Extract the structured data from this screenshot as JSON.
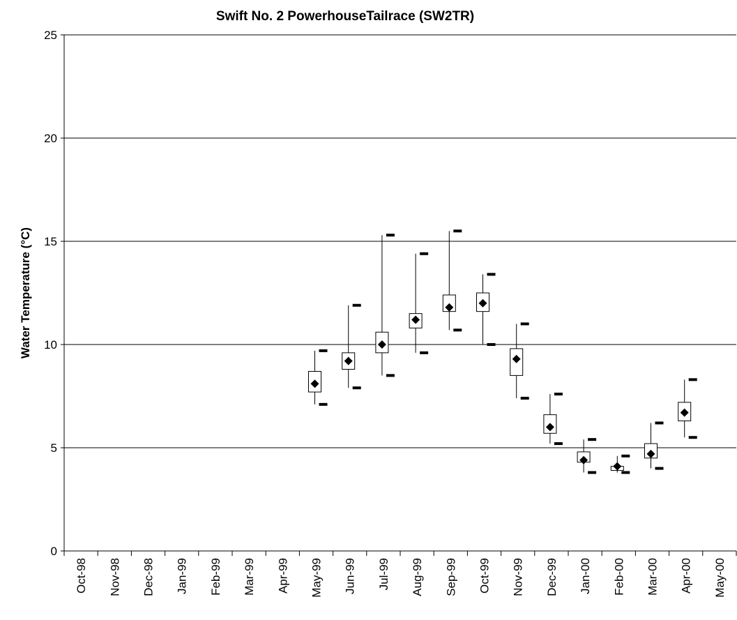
{
  "chart_data": {
    "type": "box",
    "title": "Swift No. 2 PowerhouseTailrace (SW2TR)",
    "y_label": "Water Temperature (°C)",
    "categories": [
      "Oct-98",
      "Nov-98",
      "Dec-98",
      "Jan-99",
      "Feb-99",
      "Mar-99",
      "Apr-99",
      "May-99",
      "Jun-99",
      "Jul-99",
      "Aug-99",
      "Sep-99",
      "Oct-99",
      "Nov-99",
      "Dec-99",
      "Jan-00",
      "Feb-00",
      "Mar-00",
      "Apr-00",
      "May-00"
    ],
    "min": [
      null,
      null,
      null,
      null,
      null,
      null,
      null,
      7.1,
      7.9,
      8.5,
      9.6,
      10.7,
      10.0,
      7.4,
      5.2,
      3.8,
      3.8,
      4.0,
      5.5,
      null
    ],
    "q1": [
      null,
      null,
      null,
      null,
      null,
      null,
      null,
      7.7,
      8.8,
      9.6,
      10.8,
      11.6,
      11.6,
      8.5,
      5.7,
      4.3,
      3.9,
      4.5,
      6.3,
      null
    ],
    "mean": [
      null,
      null,
      null,
      null,
      null,
      null,
      null,
      8.1,
      9.2,
      10.0,
      11.2,
      11.8,
      12.0,
      9.3,
      6.0,
      4.4,
      4.1,
      4.7,
      6.7,
      null
    ],
    "q3": [
      null,
      null,
      null,
      null,
      null,
      null,
      null,
      8.7,
      9.6,
      10.6,
      11.5,
      12.4,
      12.5,
      9.8,
      6.6,
      4.8,
      4.1,
      5.2,
      7.2,
      null
    ],
    "max": [
      null,
      null,
      null,
      null,
      null,
      null,
      null,
      9.7,
      11.9,
      15.3,
      14.4,
      15.5,
      13.4,
      11.0,
      7.6,
      5.4,
      4.6,
      6.2,
      8.3,
      null
    ],
    "ylim": [
      0,
      25
    ],
    "yticks": [
      0,
      5,
      10,
      15,
      20,
      25
    ],
    "grid": true,
    "color": "#000000"
  }
}
